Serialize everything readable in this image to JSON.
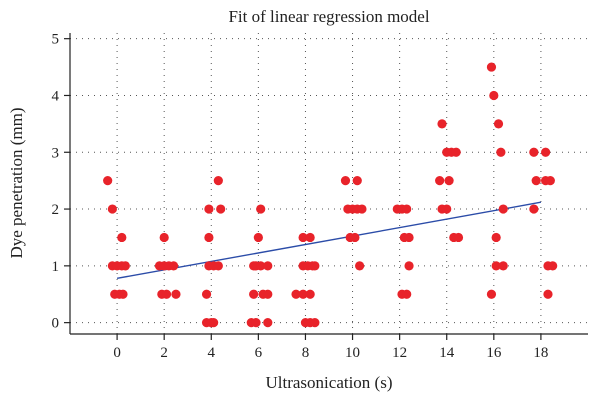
{
  "chart_data": {
    "type": "scatter",
    "title": "Fit of linear regression model",
    "xlabel": "Ultrasonication (s)",
    "ylabel": "Dye penetration (mm)",
    "xlim": [
      -2,
      20
    ],
    "ylim": [
      -0.2,
      5.1
    ],
    "xticks": [
      0,
      2,
      4,
      6,
      8,
      10,
      12,
      14,
      16,
      18
    ],
    "yticks": [
      0,
      1,
      2,
      3,
      4,
      5
    ],
    "grid": true,
    "colors": {
      "points": "#e8232a",
      "fit_line": "#2b4ca8"
    },
    "points": [
      {
        "x": -0.4,
        "y": 2.5
      },
      {
        "x": -0.2,
        "y": 2.0
      },
      {
        "x": -0.2,
        "y": 1.0
      },
      {
        "x": 0.2,
        "y": 1.5
      },
      {
        "x": 0.0,
        "y": 1.0
      },
      {
        "x": 0.2,
        "y": 1.0
      },
      {
        "x": 0.35,
        "y": 1.0
      },
      {
        "x": -0.1,
        "y": 0.5
      },
      {
        "x": 0.1,
        "y": 0.5
      },
      {
        "x": 0.25,
        "y": 0.5
      },
      {
        "x": 2.0,
        "y": 1.5
      },
      {
        "x": 1.8,
        "y": 1.0
      },
      {
        "x": 2.0,
        "y": 1.0
      },
      {
        "x": 2.2,
        "y": 1.0
      },
      {
        "x": 2.4,
        "y": 1.0
      },
      {
        "x": 1.9,
        "y": 0.5
      },
      {
        "x": 2.1,
        "y": 0.5
      },
      {
        "x": 2.5,
        "y": 0.5
      },
      {
        "x": 3.9,
        "y": 2.0
      },
      {
        "x": 4.4,
        "y": 2.0
      },
      {
        "x": 4.3,
        "y": 2.5
      },
      {
        "x": 3.9,
        "y": 1.5
      },
      {
        "x": 3.9,
        "y": 1.0
      },
      {
        "x": 4.1,
        "y": 1.0
      },
      {
        "x": 4.3,
        "y": 1.0
      },
      {
        "x": 3.8,
        "y": 0.5
      },
      {
        "x": 3.8,
        "y": 0.0
      },
      {
        "x": 4.0,
        "y": 0.0
      },
      {
        "x": 4.1,
        "y": 0.0
      },
      {
        "x": 6.1,
        "y": 2.0
      },
      {
        "x": 6.0,
        "y": 1.5
      },
      {
        "x": 5.8,
        "y": 1.0
      },
      {
        "x": 5.9,
        "y": 1.0
      },
      {
        "x": 6.1,
        "y": 1.0
      },
      {
        "x": 6.4,
        "y": 1.0
      },
      {
        "x": 5.8,
        "y": 0.5
      },
      {
        "x": 6.2,
        "y": 0.5
      },
      {
        "x": 6.4,
        "y": 0.5
      },
      {
        "x": 5.7,
        "y": 0.0
      },
      {
        "x": 5.9,
        "y": 0.0
      },
      {
        "x": 6.4,
        "y": 0.0
      },
      {
        "x": 7.9,
        "y": 1.5
      },
      {
        "x": 8.2,
        "y": 1.5
      },
      {
        "x": 7.9,
        "y": 1.0
      },
      {
        "x": 8.1,
        "y": 1.0
      },
      {
        "x": 8.3,
        "y": 1.0
      },
      {
        "x": 8.4,
        "y": 1.0
      },
      {
        "x": 7.6,
        "y": 0.5
      },
      {
        "x": 7.9,
        "y": 0.5
      },
      {
        "x": 8.2,
        "y": 0.5
      },
      {
        "x": 8.0,
        "y": 0.0
      },
      {
        "x": 8.2,
        "y": 0.0
      },
      {
        "x": 8.4,
        "y": 0.0
      },
      {
        "x": 9.7,
        "y": 2.5
      },
      {
        "x": 10.2,
        "y": 2.5
      },
      {
        "x": 9.8,
        "y": 2.0
      },
      {
        "x": 10.0,
        "y": 2.0
      },
      {
        "x": 10.2,
        "y": 2.0
      },
      {
        "x": 10.4,
        "y": 2.0
      },
      {
        "x": 9.9,
        "y": 1.5
      },
      {
        "x": 10.1,
        "y": 1.5
      },
      {
        "x": 10.3,
        "y": 1.0
      },
      {
        "x": 11.9,
        "y": 2.0
      },
      {
        "x": 12.1,
        "y": 2.0
      },
      {
        "x": 12.3,
        "y": 2.0
      },
      {
        "x": 12.2,
        "y": 1.5
      },
      {
        "x": 12.4,
        "y": 1.5
      },
      {
        "x": 12.4,
        "y": 1.0
      },
      {
        "x": 12.1,
        "y": 0.5
      },
      {
        "x": 12.3,
        "y": 0.5
      },
      {
        "x": 13.8,
        "y": 3.5
      },
      {
        "x": 14.0,
        "y": 3.0
      },
      {
        "x": 14.2,
        "y": 3.0
      },
      {
        "x": 14.4,
        "y": 3.0
      },
      {
        "x": 13.7,
        "y": 2.5
      },
      {
        "x": 14.1,
        "y": 2.5
      },
      {
        "x": 13.8,
        "y": 2.0
      },
      {
        "x": 14.0,
        "y": 2.0
      },
      {
        "x": 14.3,
        "y": 1.5
      },
      {
        "x": 14.5,
        "y": 1.5
      },
      {
        "x": 15.9,
        "y": 4.5
      },
      {
        "x": 16.0,
        "y": 4.0
      },
      {
        "x": 16.2,
        "y": 3.5
      },
      {
        "x": 16.3,
        "y": 3.0
      },
      {
        "x": 16.4,
        "y": 2.0
      },
      {
        "x": 16.1,
        "y": 1.5
      },
      {
        "x": 16.1,
        "y": 1.0
      },
      {
        "x": 16.4,
        "y": 1.0
      },
      {
        "x": 15.9,
        "y": 0.5
      },
      {
        "x": 17.7,
        "y": 3.0
      },
      {
        "x": 18.2,
        "y": 3.0
      },
      {
        "x": 17.8,
        "y": 2.5
      },
      {
        "x": 18.2,
        "y": 2.5
      },
      {
        "x": 18.4,
        "y": 2.5
      },
      {
        "x": 17.7,
        "y": 2.0
      },
      {
        "x": 18.3,
        "y": 1.0
      },
      {
        "x": 18.5,
        "y": 1.0
      },
      {
        "x": 18.3,
        "y": 0.5
      }
    ],
    "fit_line": [
      {
        "x": 0,
        "y": 0.78
      },
      {
        "x": 18,
        "y": 2.12
      }
    ]
  }
}
